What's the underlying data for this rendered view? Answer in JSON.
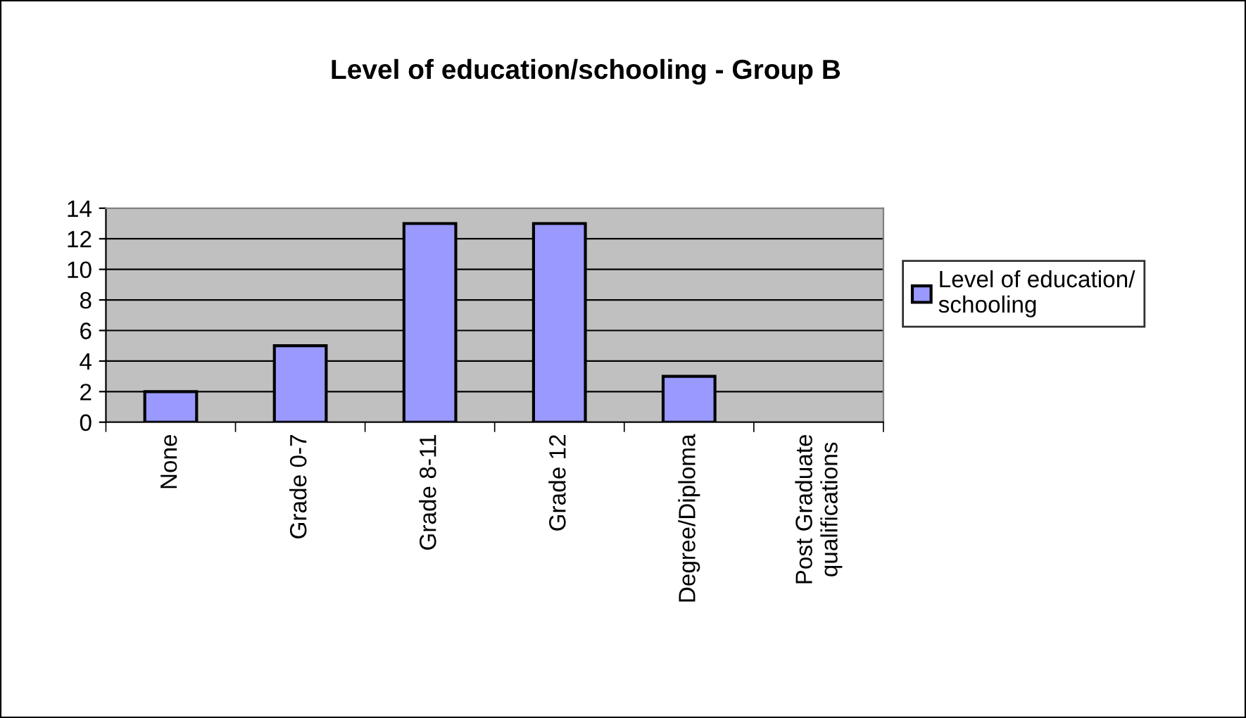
{
  "chart_data": {
    "type": "bar",
    "title": "Level of education/schooling - Group B",
    "categories": [
      "None",
      "Grade 0-7",
      "Grade 8-11",
      "Grade 12",
      "Degree/Diploma",
      "Post Graduate\nqualifications"
    ],
    "series": [
      {
        "name": "Level of education/\nschooling",
        "color": "#9999ff",
        "values": [
          2,
          5,
          13,
          13,
          3,
          0
        ]
      }
    ],
    "ylim": [
      0,
      14
    ],
    "yticks": [
      0,
      2,
      4,
      6,
      8,
      10,
      12,
      14
    ],
    "grid": "y",
    "legend": "right"
  }
}
